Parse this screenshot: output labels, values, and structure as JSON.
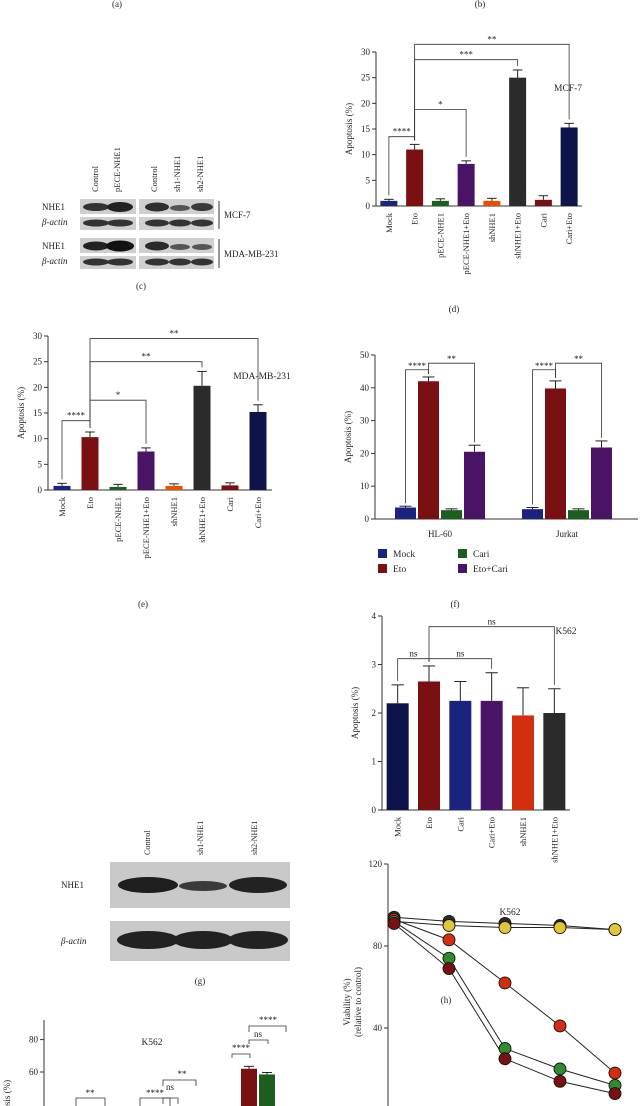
{
  "panel_labels": {
    "a": "(a)",
    "b": "(b)",
    "c": "(c)",
    "d": "(d)",
    "e": "(e)",
    "f": "(f)",
    "g": "(g)",
    "h": "(h)"
  },
  "blots": {
    "c": {
      "columns_left": [
        "Control",
        "pECE-NHE1"
      ],
      "columns_right": [
        "Control",
        "sh1-NHE1",
        "sh2-NHE1"
      ],
      "rows": [
        "NHE1",
        "β-actin",
        "NHE1",
        "β-actin"
      ],
      "groups": [
        "MCF-7",
        "MDA-MB-231"
      ]
    },
    "g": {
      "columns": [
        "Control",
        "sh1-NHE1",
        "sh2-NHE1"
      ],
      "rows": [
        "NHE1",
        "β-actin"
      ]
    }
  },
  "chart_data": [
    {
      "id": "d",
      "type": "bar",
      "title": "MCF-7",
      "ylabel": "Apoptosis (%)",
      "ylim": [
        0,
        30
      ],
      "yticks": [
        0,
        5,
        10,
        15,
        20,
        25,
        30
      ],
      "categories": [
        "Mock",
        "Eto",
        "pECE-NHE1",
        "pECE-NHE1+Eto",
        "shNHE1",
        "shNHE1+Eto",
        "Cari",
        "Cari+Eto"
      ],
      "values": [
        1.0,
        11.0,
        1.0,
        8.2,
        1.0,
        25.0,
        1.2,
        15.3
      ],
      "errors": [
        0.3,
        1.0,
        0.4,
        0.6,
        0.5,
        1.5,
        0.8,
        0.8
      ],
      "colors": [
        "#1a237e",
        "#7b1012",
        "#1b5e20",
        "#4a1466",
        "#e65100",
        "#2b2b2b",
        "#7b1012",
        "#0d1449"
      ],
      "significance": [
        {
          "from": "Eto",
          "to": "Cari+Eto",
          "label": "**"
        },
        {
          "from": "Eto",
          "to": "shNHE1+Eto",
          "label": "***"
        },
        {
          "from": "Eto",
          "to": "pECE-NHE1+Eto",
          "label": "*"
        },
        {
          "from": "Mock",
          "to": "Eto",
          "label": "****"
        }
      ]
    },
    {
      "id": "e",
      "type": "bar",
      "title": "MDA-MB-231",
      "ylabel": "Apoptosis (%)",
      "ylim": [
        0,
        30
      ],
      "yticks": [
        0,
        5,
        10,
        15,
        20,
        25,
        30
      ],
      "categories": [
        "Mock",
        "Eto",
        "pECE-NHE1",
        "pECE-NHE1+Eto",
        "shNHE1",
        "shNHE1+Eto",
        "Cari",
        "Cari+Eto"
      ],
      "values": [
        0.8,
        10.3,
        0.6,
        7.5,
        0.8,
        20.3,
        0.9,
        15.2
      ],
      "errors": [
        0.5,
        1.0,
        0.5,
        0.7,
        0.4,
        2.8,
        0.5,
        1.4
      ],
      "colors": [
        "#1a237e",
        "#7b1012",
        "#1b5e20",
        "#4a1466",
        "#e65100",
        "#2b2b2b",
        "#7b1012",
        "#0d1449"
      ],
      "significance": [
        {
          "from": "Eto",
          "to": "Cari+Eto",
          "label": "**"
        },
        {
          "from": "Eto",
          "to": "shNHE1+Eto",
          "label": "**"
        },
        {
          "from": "Eto",
          "to": "pECE-NHE1+Eto",
          "label": "*"
        },
        {
          "from": "Mock",
          "to": "Eto",
          "label": "****"
        }
      ]
    },
    {
      "id": "f",
      "type": "bar",
      "ylabel": "Apoptosis (%)",
      "ylim": [
        0,
        50
      ],
      "yticks": [
        0,
        10,
        20,
        30,
        40,
        50
      ],
      "categories": [
        "HL-60",
        "Jurkat"
      ],
      "series": [
        {
          "name": "Mock",
          "color": "#1a237e",
          "values": [
            3.5,
            3.0
          ],
          "errors": [
            0.4,
            0.5
          ]
        },
        {
          "name": "Eto",
          "color": "#7b1012",
          "values": [
            42.0,
            39.8
          ],
          "errors": [
            1.3,
            2.3
          ]
        },
        {
          "name": "Cari",
          "color": "#1b5e20",
          "values": [
            2.7,
            2.7
          ],
          "errors": [
            0.4,
            0.4
          ]
        },
        {
          "name": "Eto+Cari",
          "color": "#4a1466",
          "values": [
            20.5,
            21.8
          ],
          "errors": [
            2.0,
            2.0
          ]
        }
      ],
      "legend_order": [
        "Mock",
        "Cari",
        "Eto",
        "Eto+Cari"
      ],
      "significance": [
        {
          "group": 0,
          "from": "Mock",
          "to": "Eto",
          "label": "****"
        },
        {
          "group": 0,
          "from": "Eto",
          "to": "Eto+Cari",
          "label": "**"
        },
        {
          "group": 1,
          "from": "Mock",
          "to": "Eto",
          "label": "****"
        },
        {
          "group": 1,
          "from": "Eto",
          "to": "Eto+Cari",
          "label": "**"
        }
      ]
    },
    {
      "id": "h",
      "type": "bar",
      "title": "K562",
      "ylabel": "Apoptosis (%)",
      "ylim": [
        0,
        4
      ],
      "yticks": [
        0,
        1,
        2,
        3,
        4
      ],
      "categories": [
        "Mock",
        "Eto",
        "Cari",
        "Cari+Eto",
        "shNHE1",
        "shNHE1+Eto"
      ],
      "values": [
        2.2,
        2.65,
        2.25,
        2.25,
        1.95,
        2.0
      ],
      "errors": [
        0.38,
        0.32,
        0.4,
        0.58,
        0.57,
        0.5
      ],
      "colors": [
        "#0d1449",
        "#7b1012",
        "#1a237e",
        "#4a1466",
        "#d32f0f",
        "#2b2b2b"
      ],
      "significance": [
        {
          "from": "Eto",
          "to": "shNHE1+Eto",
          "label": "ns"
        },
        {
          "from": "Mock",
          "to": "Eto",
          "label": "ns"
        },
        {
          "from": "Eto",
          "to": "Cari+Eto",
          "label": "ns"
        }
      ]
    },
    {
      "id": "i",
      "type": "bar",
      "title": "K562",
      "ylabel": "Apoptosis (%)",
      "ylim": [
        0,
        80
      ],
      "yticks": [
        60,
        80
      ],
      "visible_bars": [
        {
          "value": 62,
          "error": 1.5,
          "color": "#7b1012"
        },
        {
          "value": 58.5,
          "error": 1.2,
          "color": "#1b5e20"
        }
      ],
      "significance_labels": [
        "**",
        "****",
        "ns",
        "**",
        "****",
        "ns",
        "****"
      ]
    },
    {
      "id": "j",
      "type": "line",
      "title": "K562",
      "ylabel": "Viability (%)",
      "ylabel2": "(relative to control)",
      "ylim": [
        0,
        120
      ],
      "yticks": [
        40,
        80,
        120
      ],
      "x": [
        0,
        1,
        2,
        3,
        4
      ],
      "series": [
        {
          "color": "#2b2b2b",
          "values": [
            94,
            92,
            91,
            90,
            88
          ]
        },
        {
          "color": "#e0c63a",
          "values": [
            92,
            90,
            89,
            89,
            88
          ]
        },
        {
          "color": "#d32f0f",
          "values": [
            93,
            83,
            62,
            41,
            18
          ]
        },
        {
          "color": "#2e8b2e",
          "values": [
            92,
            74,
            30,
            20,
            12
          ]
        },
        {
          "color": "#7b1012",
          "values": [
            91,
            69,
            25,
            14,
            8
          ]
        }
      ]
    }
  ]
}
